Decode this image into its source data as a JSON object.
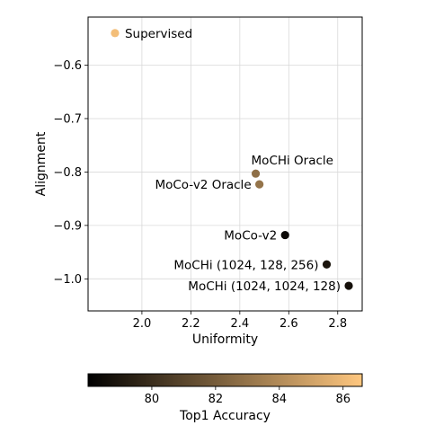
{
  "chart_data": {
    "type": "scatter",
    "xlabel": "Uniformity",
    "ylabel": "Alignment",
    "xlim": [
      1.78,
      2.9
    ],
    "ylim": [
      -1.06,
      -0.51
    ],
    "x_ticks": [
      {
        "value": 2.0,
        "label": "2.0"
      },
      {
        "value": 2.2,
        "label": "2.2"
      },
      {
        "value": 2.4,
        "label": "2.4"
      },
      {
        "value": 2.6,
        "label": "2.6"
      },
      {
        "value": 2.8,
        "label": "2.8"
      }
    ],
    "y_ticks": [
      {
        "value": -0.6,
        "label": "−0.6"
      },
      {
        "value": -0.7,
        "label": "−0.7"
      },
      {
        "value": -0.8,
        "label": "−0.8"
      },
      {
        "value": -0.9,
        "label": "−0.9"
      },
      {
        "value": -1.0,
        "label": "−1.0"
      }
    ],
    "grid": true,
    "points": [
      {
        "label": "Supervised",
        "x": 1.89,
        "y": -0.54,
        "accuracy": 86.2,
        "label_anchor": "start"
      },
      {
        "label": "MoCHi Oracle",
        "x": 2.465,
        "y": -0.803,
        "accuracy": 82.8,
        "label_anchor": "start"
      },
      {
        "label": "MoCo-v2 Oracle",
        "x": 2.48,
        "y": -0.823,
        "accuracy": 83.0,
        "label_anchor": "end"
      },
      {
        "label": "MoCo-v2",
        "x": 2.585,
        "y": -0.918,
        "accuracy": 78.4,
        "label_anchor": "end"
      },
      {
        "label": "MoCHi (1024, 128, 256)",
        "x": 2.755,
        "y": -0.973,
        "accuracy": 78.9,
        "label_anchor": "end"
      },
      {
        "label": "MoCHi (1024, 1024, 128)",
        "x": 2.845,
        "y": -1.013,
        "accuracy": 78.7,
        "label_anchor": "end"
      }
    ],
    "colorbar": {
      "label": "Top1 Accuracy",
      "range": [
        78.0,
        86.6
      ],
      "ticks": [
        {
          "value": 80,
          "label": "80"
        },
        {
          "value": 82,
          "label": "82"
        },
        {
          "value": 84,
          "label": "84"
        },
        {
          "value": 86,
          "label": "86"
        }
      ],
      "colormap": "copper",
      "stops": [
        "#000000",
        "#ffc77f"
      ]
    }
  }
}
